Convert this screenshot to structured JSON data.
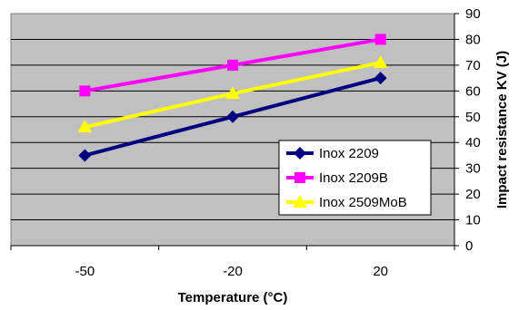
{
  "chart_data": {
    "type": "line",
    "categories": [
      "-50",
      "-20",
      "20"
    ],
    "x": [
      -50,
      -20,
      20
    ],
    "series": [
      {
        "name": "Inox 2209",
        "values": [
          35,
          50,
          65
        ],
        "color": "#000080",
        "marker": "diamond"
      },
      {
        "name": "Inox 2209B",
        "values": [
          60,
          70,
          80
        ],
        "color": "#ff00ff",
        "marker": "square"
      },
      {
        "name": "Inox 2509MoB",
        "values": [
          46,
          59,
          71
        ],
        "color": "#ffff00",
        "marker": "triangle"
      }
    ],
    "title": "",
    "xlabel": "Temperature (°C)",
    "ylabel": "Impact resistance KV (J)",
    "ylim": [
      0,
      90
    ],
    "yticks": [
      0,
      10,
      20,
      30,
      40,
      50,
      60,
      70,
      80,
      90
    ],
    "y_axis_side": "right",
    "grid": true,
    "legend_position": "inside-lower-right",
    "plot_background": "#c0c0c0"
  }
}
